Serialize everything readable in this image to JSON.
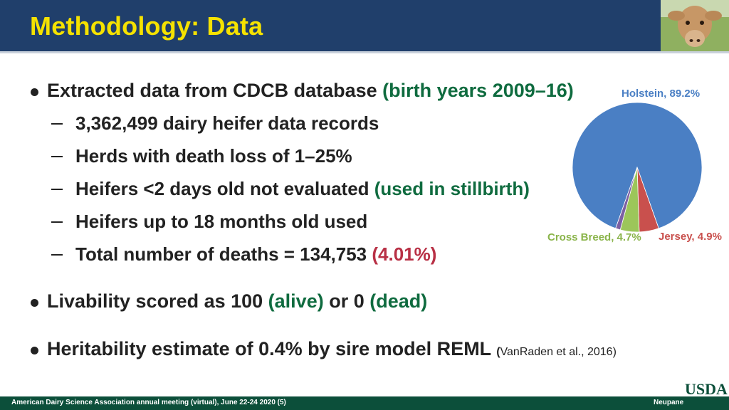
{
  "slide": {
    "title": "Methodology: Data",
    "bullets": [
      {
        "text": "Extracted data from CDCB database ",
        "highlight": "(birth years 2009–16)"
      },
      {
        "text": "Livability scored as 100 ",
        "highlight1": "(alive)",
        "mid": " or 0 ",
        "highlight2": "(dead)"
      },
      {
        "text": "Heritability estimate of 0.4% by sire model REML ",
        "cite_open": "(",
        "cite": "VanRaden et al., 2016)"
      }
    ],
    "subbullets": [
      {
        "text": "3,362,499 dairy heifer data records"
      },
      {
        "text": "Herds with death loss of 1–25%"
      },
      {
        "text": "Heifers <2 days old not evaluated ",
        "highlight": "(used in stillbirth)"
      },
      {
        "text": "Heifers up to 18 months old used"
      },
      {
        "text": "Total number of deaths = 134,753 ",
        "highlight": "(4.01%)"
      }
    ]
  },
  "chart_data": {
    "type": "pie",
    "slices": [
      {
        "name": "Holstein",
        "value": 89.2,
        "label": "Holstein, 89.2%",
        "color": "#4a7fc4"
      },
      {
        "name": "Jersey",
        "value": 4.9,
        "label": "Jersey, 4.9%",
        "color": "#c9504d"
      },
      {
        "name": "Cross Breed",
        "value": 4.7,
        "label": "Cross Breed, 4.7%",
        "color": "#9cc65a"
      },
      {
        "name": "Other",
        "value": 1.2,
        "label": "",
        "color": "#7c5fa3"
      }
    ]
  },
  "footer": {
    "meeting": "American Dairy Science Association annual meeting (virtual), June 22-24 2020 (5)",
    "author": "Neupane"
  },
  "logo": {
    "text": "USDA",
    "color": "#0c4f3a"
  },
  "image": {
    "subject": "calf-photo"
  }
}
